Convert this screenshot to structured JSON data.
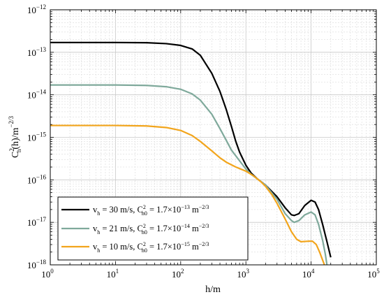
{
  "chart_data": {
    "type": "line",
    "x_scale": "log",
    "y_scale": "log",
    "xlim": [
      1,
      100000
    ],
    "ylim": [
      1e-18,
      1e-12
    ],
    "grid": true,
    "legend_position": "bottom-left",
    "xlabel": {
      "main": "h/m"
    },
    "ylabel": {
      "base": "C",
      "sup": "2",
      "sub": "n",
      "mid": "(h)/m",
      "unit_sup": "−2/3"
    },
    "x_ticks": [
      {
        "value": 1,
        "base": "10",
        "exp": "0"
      },
      {
        "value": 10,
        "base": "10",
        "exp": "1"
      },
      {
        "value": 100,
        "base": "10",
        "exp": "2"
      },
      {
        "value": 1000,
        "base": "10",
        "exp": "3"
      },
      {
        "value": 10000,
        "base": "10",
        "exp": "4"
      },
      {
        "value": 100000,
        "base": "10",
        "exp": "5"
      }
    ],
    "y_ticks": [
      {
        "value": 1e-18,
        "base": "10",
        "exp": "−18"
      },
      {
        "value": 1e-17,
        "base": "10",
        "exp": "−17"
      },
      {
        "value": 1e-16,
        "base": "10",
        "exp": "−16"
      },
      {
        "value": 1e-15,
        "base": "10",
        "exp": "−15"
      },
      {
        "value": 1e-14,
        "base": "10",
        "exp": "−14"
      },
      {
        "value": 1e-13,
        "base": "10",
        "exp": "−13"
      },
      {
        "value": 1e-12,
        "base": "10",
        "exp": "−12"
      }
    ],
    "series": [
      {
        "color": "#000000",
        "legend": {
          "v": "v",
          "v_sub": "h",
          "speed": " = 30 m/s, C",
          "c_sup": "2",
          "c_sub": "n0",
          "eq": " = 1.7×10",
          "exp": "−13",
          "unit": "m",
          "unit_exp": "−2/3"
        },
        "points": [
          [
            1,
            1.7e-13
          ],
          [
            10,
            1.7e-13
          ],
          [
            30,
            1.68e-13
          ],
          [
            60,
            1.6e-13
          ],
          [
            100,
            1.45e-13
          ],
          [
            150,
            1.2e-13
          ],
          [
            200,
            8.5e-14
          ],
          [
            300,
            3.2e-14
          ],
          [
            400,
            1.2e-14
          ],
          [
            500,
            4.5e-15
          ],
          [
            600,
            1.8e-15
          ],
          [
            700,
            8e-16
          ],
          [
            800,
            4.5e-16
          ],
          [
            1000,
            2.2e-16
          ],
          [
            1200,
            1.45e-16
          ],
          [
            1500,
            1.05e-16
          ],
          [
            2000,
            7.5e-17
          ],
          [
            3000,
            4e-17
          ],
          [
            4000,
            2.2e-17
          ],
          [
            5000,
            1.5e-17
          ],
          [
            5500,
            1.45e-17
          ],
          [
            6500,
            1.6e-17
          ],
          [
            8000,
            2.5e-17
          ],
          [
            10000,
            3.3e-17
          ],
          [
            11500,
            3e-17
          ],
          [
            13000,
            2e-17
          ],
          [
            15000,
            9e-18
          ],
          [
            17500,
            3.5e-18
          ],
          [
            20000,
            1.5e-18
          ]
        ]
      },
      {
        "color": "#7fa99b",
        "legend": {
          "v": "v",
          "v_sub": "h",
          "speed": " = 21 m/s, C",
          "c_sup": "2",
          "c_sub": "n0",
          "eq": " = 1.7×10",
          "exp": "−14",
          "unit": "m",
          "unit_exp": "−2/3"
        },
        "points": [
          [
            1,
            1.7e-14
          ],
          [
            10,
            1.7e-14
          ],
          [
            30,
            1.66e-14
          ],
          [
            60,
            1.55e-14
          ],
          [
            100,
            1.35e-14
          ],
          [
            150,
            1.05e-14
          ],
          [
            200,
            7.5e-15
          ],
          [
            300,
            3.5e-15
          ],
          [
            400,
            1.6e-15
          ],
          [
            500,
            8.5e-16
          ],
          [
            600,
            5e-16
          ],
          [
            800,
            2.8e-16
          ],
          [
            1000,
            1.8e-16
          ],
          [
            1200,
            1.35e-16
          ],
          [
            1500,
            1.05e-16
          ],
          [
            2000,
            7.5e-17
          ],
          [
            3000,
            3.5e-17
          ],
          [
            4000,
            1.6e-17
          ],
          [
            5000,
            1.1e-17
          ],
          [
            5500,
            1e-17
          ],
          [
            6500,
            1.1e-17
          ],
          [
            8000,
            1.5e-17
          ],
          [
            10000,
            1.75e-17
          ],
          [
            11500,
            1.5e-17
          ],
          [
            13000,
            9e-18
          ],
          [
            15000,
            3.8e-18
          ],
          [
            16500,
            1.8e-18
          ],
          [
            17500,
            1e-18
          ]
        ]
      },
      {
        "color": "#f2a51c",
        "legend": {
          "v": "v",
          "v_sub": "h",
          "speed": " = 10 m/s, C",
          "c_sup": "2",
          "c_sub": "n0",
          "eq": " = 1.7×10",
          "exp": "−15",
          "unit": "m",
          "unit_exp": "−2/3"
        },
        "points": [
          [
            1,
            1.9e-15
          ],
          [
            10,
            1.9e-15
          ],
          [
            30,
            1.85e-15
          ],
          [
            60,
            1.7e-15
          ],
          [
            100,
            1.45e-15
          ],
          [
            150,
            1.1e-15
          ],
          [
            200,
            8e-16
          ],
          [
            300,
            4.8e-16
          ],
          [
            400,
            3.3e-16
          ],
          [
            500,
            2.6e-16
          ],
          [
            700,
            2e-16
          ],
          [
            1000,
            1.6e-16
          ],
          [
            1300,
            1.25e-16
          ],
          [
            1700,
            9e-17
          ],
          [
            2000,
            7e-17
          ],
          [
            2500,
            4.5e-17
          ],
          [
            3000,
            2.8e-17
          ],
          [
            4000,
            1.2e-17
          ],
          [
            5000,
            6e-18
          ],
          [
            6000,
            4e-18
          ],
          [
            7000,
            3.5e-18
          ],
          [
            9000,
            3.6e-18
          ],
          [
            10500,
            3.6e-18
          ],
          [
            12000,
            3e-18
          ],
          [
            13500,
            2e-18
          ],
          [
            15000,
            1.3e-18
          ],
          [
            16000,
            1e-18
          ]
        ]
      }
    ]
  }
}
